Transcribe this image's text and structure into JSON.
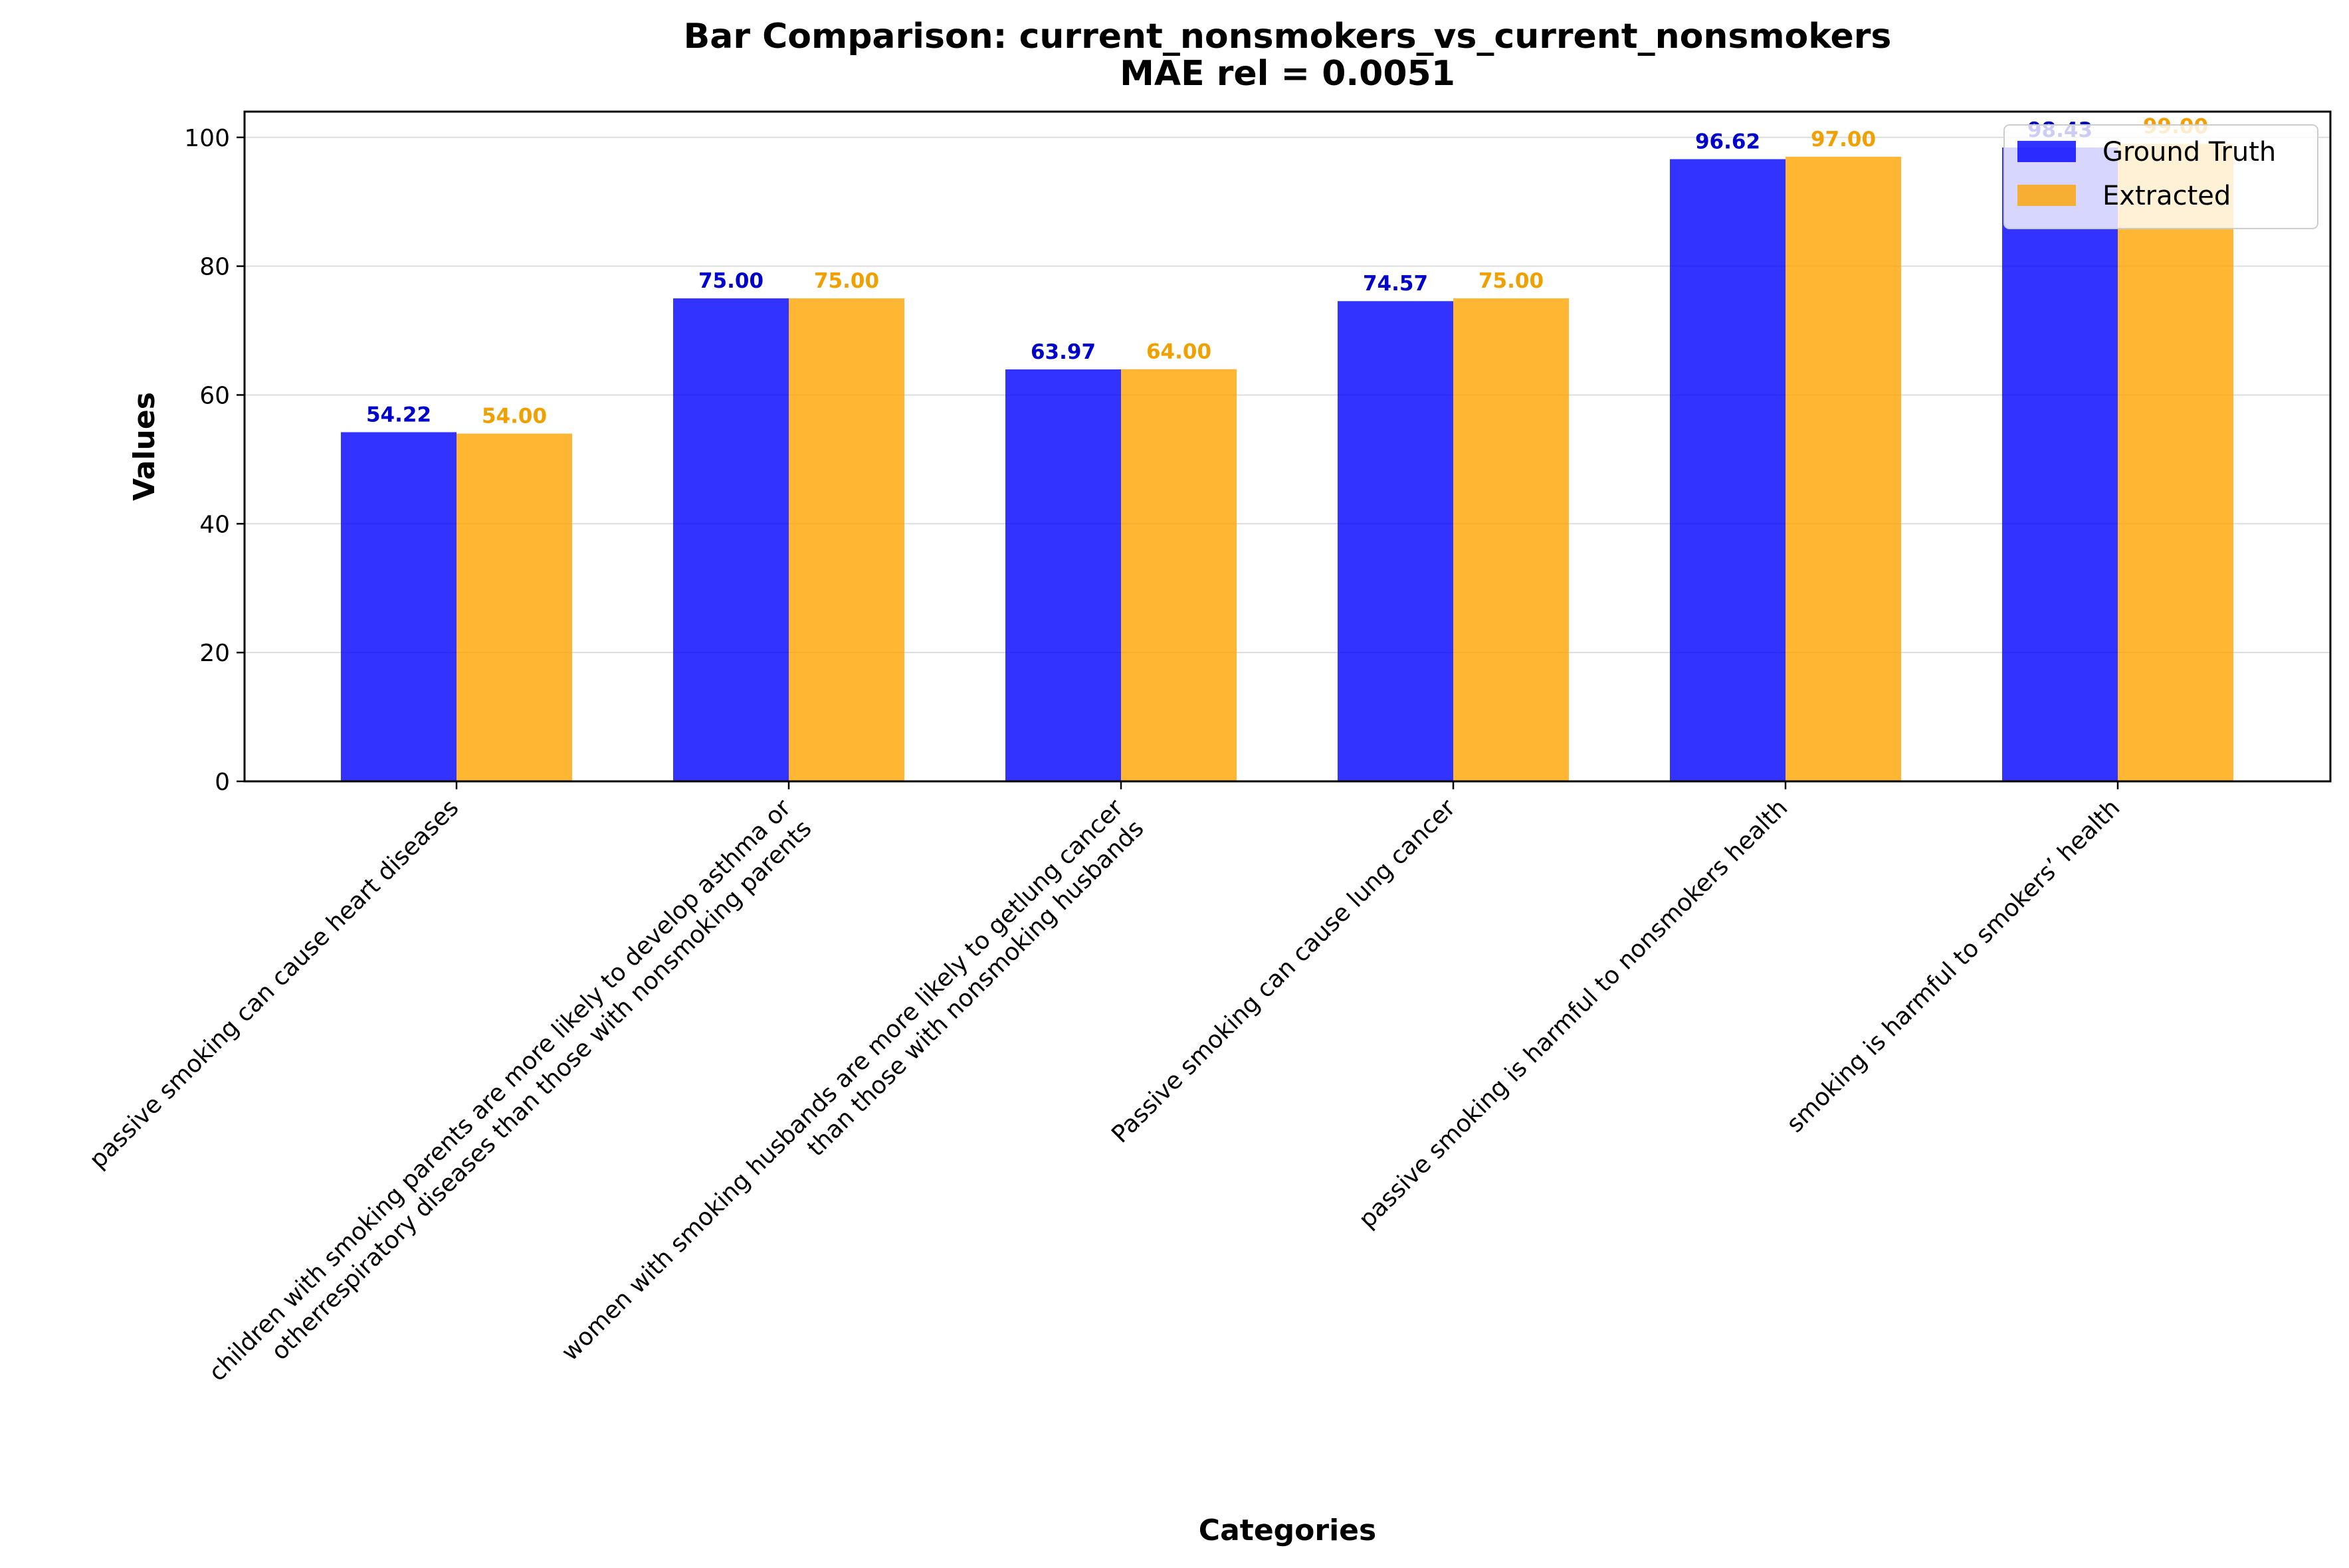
{
  "chart_data": {
    "type": "bar",
    "title": [
      "Bar Comparison: current_nonsmokers_vs_current_nonsmokers",
      "MAE rel = 0.0051"
    ],
    "xlabel": "Categories",
    "ylabel": "Values",
    "ylim": [
      0,
      104
    ],
    "yticks": [
      0,
      20,
      40,
      60,
      80,
      100
    ],
    "grid": true,
    "legend_position": "top-right",
    "categories": [
      [
        "passive smoking can cause heart diseases"
      ],
      [
        "children with smoking parents are more likely to develop asthma or",
        "otherrespiratory diseases than those with nonsmoking parents"
      ],
      [
        "women with smoking husbands are more likely to getlung cancer",
        "than those with nonsmoking husbands"
      ],
      [
        "Passive smoking can cause lung cancer"
      ],
      [
        "passive smoking is harmful to nonsmokers health"
      ],
      [
        "smoking is harmful to smokers’ health"
      ]
    ],
    "series": [
      {
        "name": "Ground Truth",
        "color": "#0000ff",
        "label_color": "#0000cc",
        "values": [
          54.22,
          75.0,
          63.97,
          74.57,
          96.62,
          98.43
        ]
      },
      {
        "name": "Extracted",
        "color": "#ffa500",
        "label_color": "#f0a000",
        "values": [
          54.0,
          75.0,
          64.0,
          75.0,
          97.0,
          99.0
        ]
      }
    ]
  }
}
